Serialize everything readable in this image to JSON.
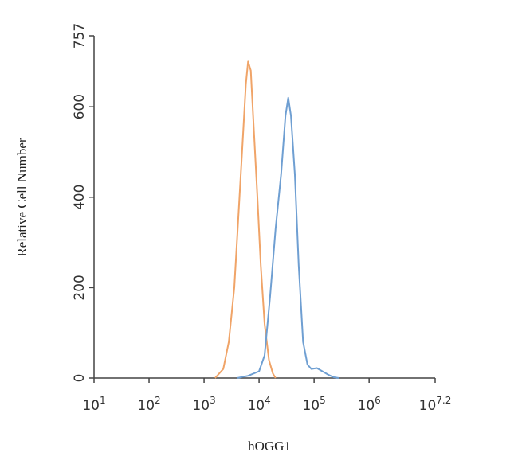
{
  "chart_data": {
    "type": "line",
    "x_label": "hOGG1",
    "y_label": "Relative Cell Number",
    "xscale": "log",
    "xlim": [
      10,
      15848932
    ],
    "ylim": [
      0,
      757
    ],
    "xticks": [
      {
        "value": 10,
        "label": "10",
        "exponent": "1"
      },
      {
        "value": 100,
        "label": "10",
        "exponent": "2"
      },
      {
        "value": 1000,
        "label": "10",
        "exponent": "3"
      },
      {
        "value": 10000,
        "label": "10",
        "exponent": "4"
      },
      {
        "value": 100000,
        "label": "10",
        "exponent": "5"
      },
      {
        "value": 1000000,
        "label": "10",
        "exponent": "6"
      },
      {
        "value": 15848932,
        "label": "10",
        "exponent": "7.2"
      }
    ],
    "yticks": [
      0,
      200,
      400,
      600,
      757
    ],
    "series": [
      {
        "color": "#f0a468",
        "x": [
          1585,
          2239,
          2818,
          3548,
          4169,
          5012,
          5754,
          6310,
          7079,
          7943,
          9333,
          10715,
          12589,
          15136,
          17783,
          19953
        ],
        "values": [
          0,
          20,
          80,
          200,
          350,
          520,
          650,
          700,
          680,
          560,
          400,
          250,
          120,
          40,
          10,
          0
        ]
      },
      {
        "color": "#6f9fd2",
        "x": [
          3981,
          6310,
          10000,
          12589,
          15849,
          19953,
          25119,
          30200,
          33884,
          38019,
          44668,
          52481,
          63096,
          75858,
          89125,
          112202,
          141254,
          177828,
          223872,
          281838
        ],
        "values": [
          0,
          5,
          15,
          50,
          180,
          330,
          450,
          580,
          620,
          580,
          450,
          250,
          80,
          30,
          20,
          22,
          15,
          8,
          2,
          0
        ]
      }
    ]
  }
}
